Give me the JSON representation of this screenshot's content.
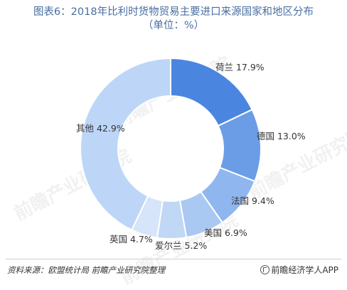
{
  "title_line1": "图表6：2018年比利时货物贸易主要进口来源国家和地区分布",
  "title_line2": "（单位：%）",
  "source_text": "资料来源：欧盟统计局 前瞻产业研究院整理",
  "brand_text": "前瞻经济学人APP",
  "watermark_text": "前瞻产业研究院",
  "chart_data": {
    "type": "pie",
    "donut": true,
    "title": "图表6：2018年比利时货物贸易主要进口来源国家和地区分布（单位：%）",
    "series": [
      {
        "name": "荷兰",
        "value": 17.9,
        "label": "荷兰 17.9%",
        "color": "#4a86e0"
      },
      {
        "name": "德国",
        "value": 13.0,
        "label": "德国 13.0%",
        "color": "#6a9de6"
      },
      {
        "name": "法国",
        "value": 9.4,
        "label": "法国 9.4%",
        "color": "#8fb6ee"
      },
      {
        "name": "美国",
        "value": 6.9,
        "label": "美国 6.9%",
        "color": "#a9c8f2"
      },
      {
        "name": "爱尔兰",
        "value": 5.2,
        "label": "爱尔兰 5.2%",
        "color": "#c0d7f6"
      },
      {
        "name": "英国",
        "value": 4.7,
        "label": "英国 4.7%",
        "color": "#d6e5f9"
      },
      {
        "name": "其他",
        "value": 42.9,
        "label": "其他 42.9%",
        "color": "#bdd6f8"
      }
    ]
  }
}
